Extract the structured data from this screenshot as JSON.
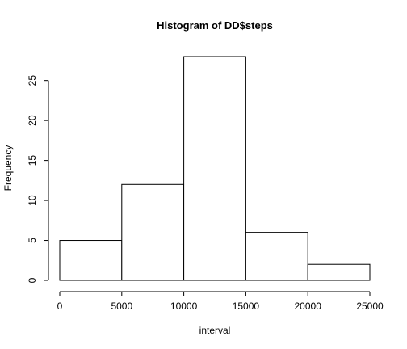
{
  "chart_data": {
    "type": "bar",
    "title": "Histogram of DD$steps",
    "xlabel": "interval",
    "ylabel": "Frequency",
    "bins": [
      {
        "start": 0,
        "end": 5000,
        "count": 5
      },
      {
        "start": 5000,
        "end": 10000,
        "count": 12
      },
      {
        "start": 10000,
        "end": 15000,
        "count": 28
      },
      {
        "start": 15000,
        "end": 20000,
        "count": 6
      },
      {
        "start": 20000,
        "end": 25000,
        "count": 2
      }
    ],
    "xticks": [
      "0",
      "5000",
      "10000",
      "15000",
      "20000",
      "25000"
    ],
    "yticks": [
      "0",
      "5",
      "10",
      "15",
      "20",
      "25"
    ],
    "xlim": [
      0,
      25000
    ],
    "ylim": [
      0,
      28
    ],
    "grid": false
  }
}
